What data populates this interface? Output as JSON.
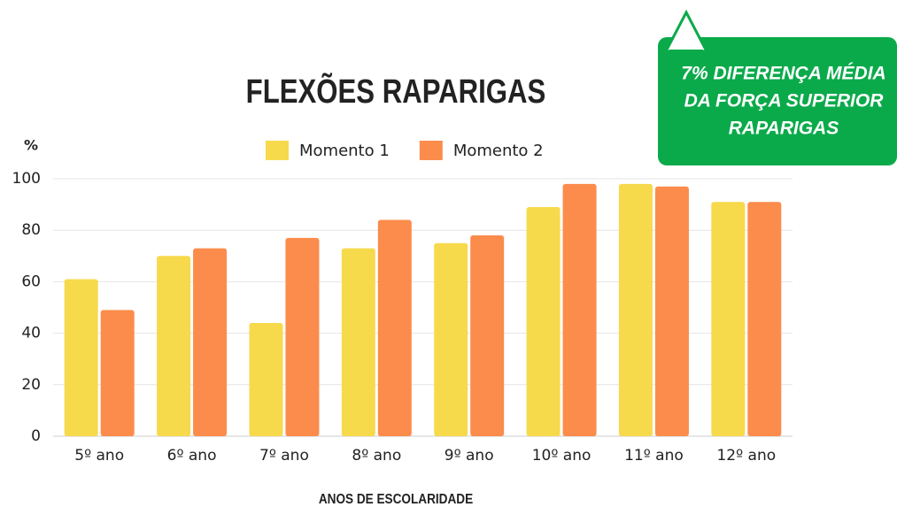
{
  "chart_data": {
    "type": "bar",
    "title": "FLEXÕES RAPARIGAS",
    "y_label": "%",
    "x_label": "ANOS DE ESCOLARIDADE",
    "categories": [
      "5º ano",
      "6º ano",
      "7º ano",
      "8º ano",
      "9º ano",
      "10º ano",
      "11º ano",
      "12º ano"
    ],
    "series": [
      {
        "name": "Momento 1",
        "color": "#f7d94c",
        "values": [
          61,
          70,
          44,
          73,
          75,
          89,
          98,
          91
        ]
      },
      {
        "name": "Momento 2",
        "color": "#fb8c4c",
        "values": [
          49,
          73,
          77,
          84,
          78,
          98,
          97,
          91
        ]
      }
    ],
    "ylim": [
      0,
      100
    ],
    "yticks": [
      0,
      20,
      40,
      60,
      80,
      100
    ],
    "grid": true,
    "annotation": [
      "7% DIFERENÇA MÉDIA",
      "DA FORÇA SUPERIOR",
      "RAPARIGAS"
    ]
  }
}
